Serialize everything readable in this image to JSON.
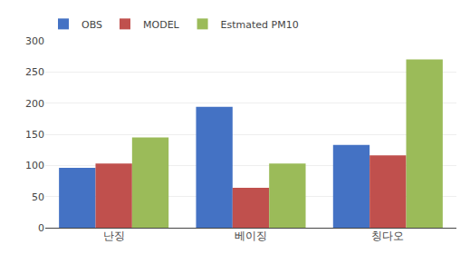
{
  "chart_data": {
    "type": "bar",
    "categories": [
      "난징",
      "베이징",
      "칭다오"
    ],
    "series": [
      {
        "name": "OBS",
        "color": "#4472C4",
        "values": [
          96,
          194,
          133
        ]
      },
      {
        "name": "MODEL",
        "color": "#C0504D",
        "values": [
          103,
          64,
          116
        ]
      },
      {
        "name": "Estmated PM10",
        "color": "#9BBB59",
        "values": [
          145,
          103,
          270
        ]
      }
    ],
    "ylim": [
      0,
      300
    ],
    "yticks": [
      0,
      50,
      100,
      150,
      200,
      250,
      300
    ],
    "grid": true,
    "legend": "upper left"
  }
}
